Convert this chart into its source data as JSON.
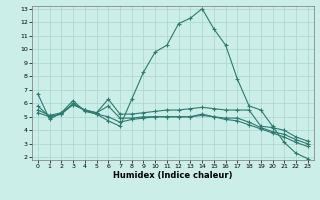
{
  "title": "",
  "xlabel": "Humidex (Indice chaleur)",
  "background_color": "#cceee8",
  "grid_color": "#aad4cc",
  "line_color": "#2d7a6e",
  "xlim": [
    -0.5,
    23.5
  ],
  "ylim": [
    1.8,
    13.2
  ],
  "xticks": [
    0,
    1,
    2,
    3,
    4,
    5,
    6,
    7,
    8,
    9,
    10,
    11,
    12,
    13,
    14,
    15,
    16,
    17,
    18,
    19,
    20,
    21,
    22,
    23
  ],
  "yticks": [
    2,
    3,
    4,
    5,
    6,
    7,
    8,
    9,
    10,
    11,
    12,
    13
  ],
  "line1_x": [
    0,
    1,
    2,
    3,
    4,
    5,
    6,
    7,
    8,
    9,
    10,
    11,
    12,
    13,
    14,
    15,
    16,
    17,
    18,
    19,
    20,
    21,
    22,
    23
  ],
  "line1_y": [
    6.7,
    4.8,
    5.3,
    6.2,
    5.4,
    5.2,
    4.7,
    4.3,
    6.3,
    8.3,
    9.8,
    10.3,
    11.9,
    12.3,
    13.0,
    11.5,
    10.3,
    7.8,
    5.8,
    5.5,
    4.3,
    3.1,
    2.3,
    1.9
  ],
  "line2_x": [
    0,
    1,
    2,
    3,
    4,
    5,
    6,
    7,
    8,
    9,
    10,
    11,
    12,
    13,
    14,
    15,
    16,
    17,
    18,
    19,
    20,
    21,
    22,
    23
  ],
  "line2_y": [
    5.5,
    5.1,
    5.3,
    5.9,
    5.5,
    5.3,
    6.3,
    5.2,
    5.2,
    5.3,
    5.4,
    5.5,
    5.5,
    5.6,
    5.7,
    5.6,
    5.5,
    5.5,
    5.5,
    4.3,
    4.2,
    4.0,
    3.5,
    3.2
  ],
  "line3_x": [
    0,
    1,
    2,
    3,
    4,
    5,
    6,
    7,
    8,
    9,
    10,
    11,
    12,
    13,
    14,
    15,
    16,
    17,
    18,
    19,
    20,
    21,
    22,
    23
  ],
  "line3_y": [
    5.3,
    5.0,
    5.2,
    5.9,
    5.5,
    5.3,
    5.8,
    4.9,
    4.9,
    5.0,
    5.0,
    5.0,
    5.0,
    5.0,
    5.1,
    5.0,
    4.9,
    4.9,
    4.6,
    4.2,
    3.9,
    3.7,
    3.3,
    3.0
  ],
  "line4_x": [
    0,
    1,
    2,
    3,
    4,
    5,
    6,
    7,
    8,
    9,
    10,
    11,
    12,
    13,
    14,
    15,
    16,
    17,
    18,
    19,
    20,
    21,
    22,
    23
  ],
  "line4_y": [
    5.8,
    5.0,
    5.2,
    6.0,
    5.5,
    5.2,
    5.0,
    4.6,
    4.8,
    4.9,
    5.0,
    5.0,
    5.0,
    5.0,
    5.2,
    5.0,
    4.8,
    4.7,
    4.4,
    4.1,
    3.8,
    3.5,
    3.1,
    2.8
  ]
}
